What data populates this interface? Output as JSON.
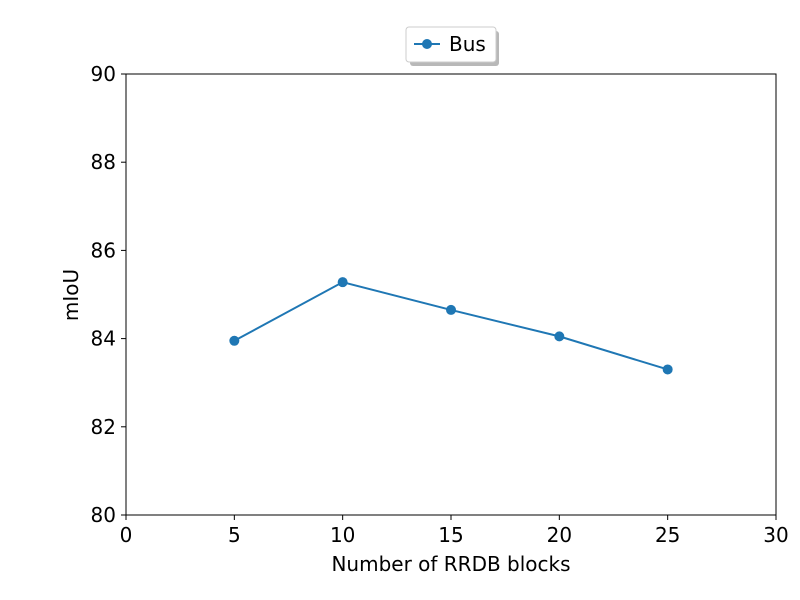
{
  "chart_data": {
    "type": "line",
    "xlabel": "Number of RRDB blocks",
    "ylabel": "mIoU",
    "xlim": [
      0,
      30
    ],
    "ylim": [
      80,
      90
    ],
    "xticks": [
      "0",
      "5",
      "10",
      "15",
      "20",
      "25",
      "30"
    ],
    "yticks": [
      "80",
      "82",
      "84",
      "86",
      "88",
      "90"
    ],
    "grid": false,
    "legend_position": "top-center",
    "series": [
      {
        "name": "Bus",
        "color": "#1f77b4",
        "marker": "circle",
        "x": [
          5,
          10,
          15,
          20,
          25
        ],
        "y": [
          83.95,
          85.28,
          84.65,
          84.05,
          83.3
        ]
      }
    ]
  }
}
